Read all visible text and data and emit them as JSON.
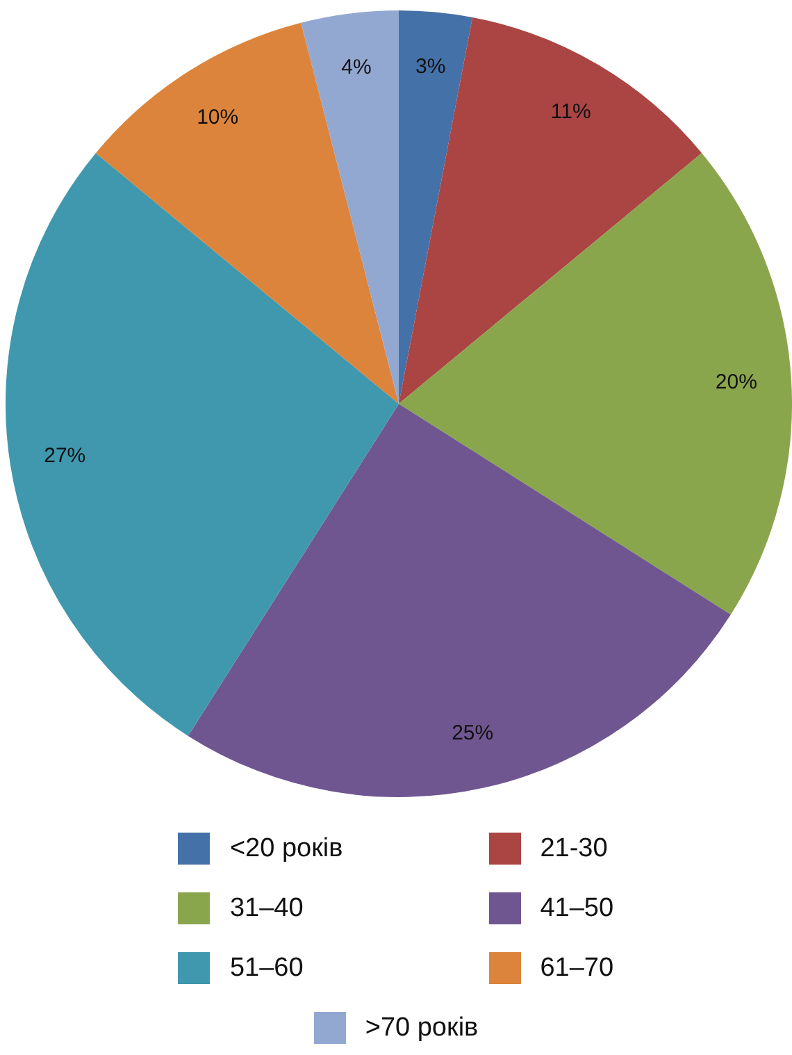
{
  "chart_data": {
    "type": "pie",
    "categories": [
      "<20 років",
      "21-30",
      "31–40",
      "41–50",
      "51–60",
      "61–70",
      ">70 років"
    ],
    "values": [
      3,
      11,
      20,
      25,
      27,
      10,
      4
    ],
    "colors": [
      "#4571a9",
      "#ab4544",
      "#8aa64d",
      "#705690",
      "#3f98ae",
      "#dc843b",
      "#93a8d0"
    ],
    "value_labels": [
      "3%",
      "11%",
      "20%",
      "25%",
      "27%",
      "10%",
      "4%"
    ],
    "legend": "bottom"
  }
}
